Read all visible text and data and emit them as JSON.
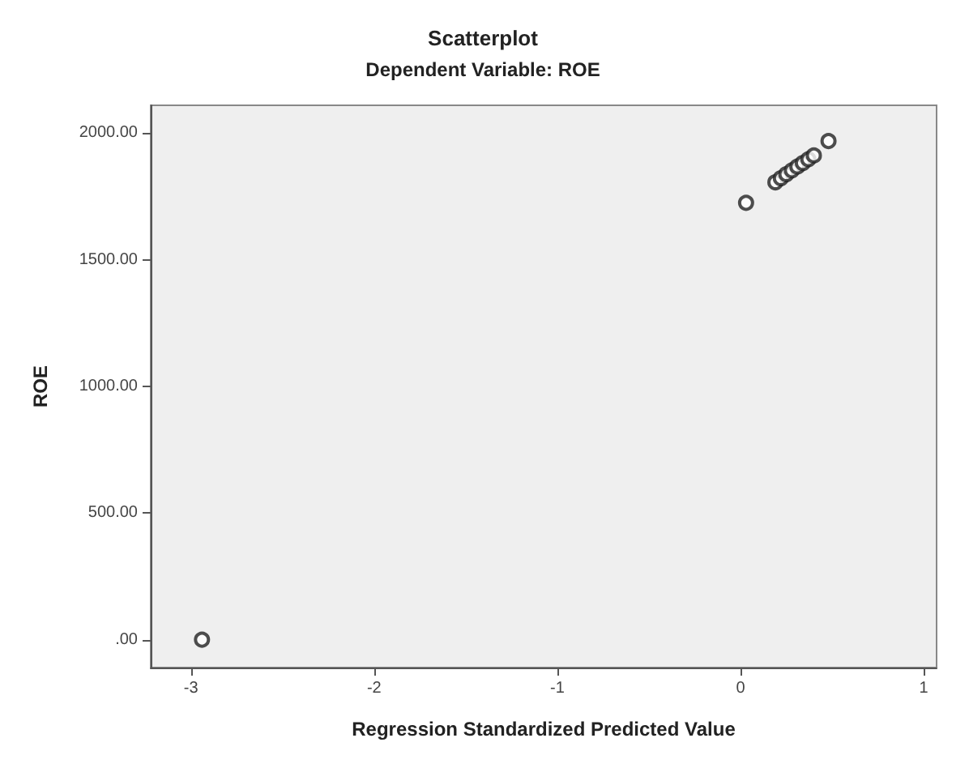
{
  "chart_data": {
    "type": "scatter",
    "title": "Scatterplot",
    "subtitle": "Dependent Variable: ROE",
    "xlabel": "Regression Standardized Predicted Value",
    "ylabel": "ROE",
    "x": [
      -2.94,
      0.03,
      0.19,
      0.22,
      0.25,
      0.28,
      0.31,
      0.34,
      0.37,
      0.4,
      0.48
    ],
    "values": [
      0,
      1725,
      1806,
      1822,
      1838,
      1853,
      1868,
      1882,
      1897,
      1912,
      1969
    ],
    "color": "#222222",
    "marker": "circle",
    "grid": false,
    "xlim": [
      -3.22,
      1.07
    ],
    "xticks": [
      -3,
      -2,
      -1,
      0,
      1
    ],
    "ylim": [
      -110,
      2110
    ],
    "yticks": [
      {
        "value": 0,
        "label": ".00"
      },
      {
        "value": 500,
        "label": "500.00"
      },
      {
        "value": 1000,
        "label": "1000.00"
      },
      {
        "value": 1500,
        "label": "1500.00"
      },
      {
        "value": 2000,
        "label": "2000.00"
      }
    ]
  }
}
